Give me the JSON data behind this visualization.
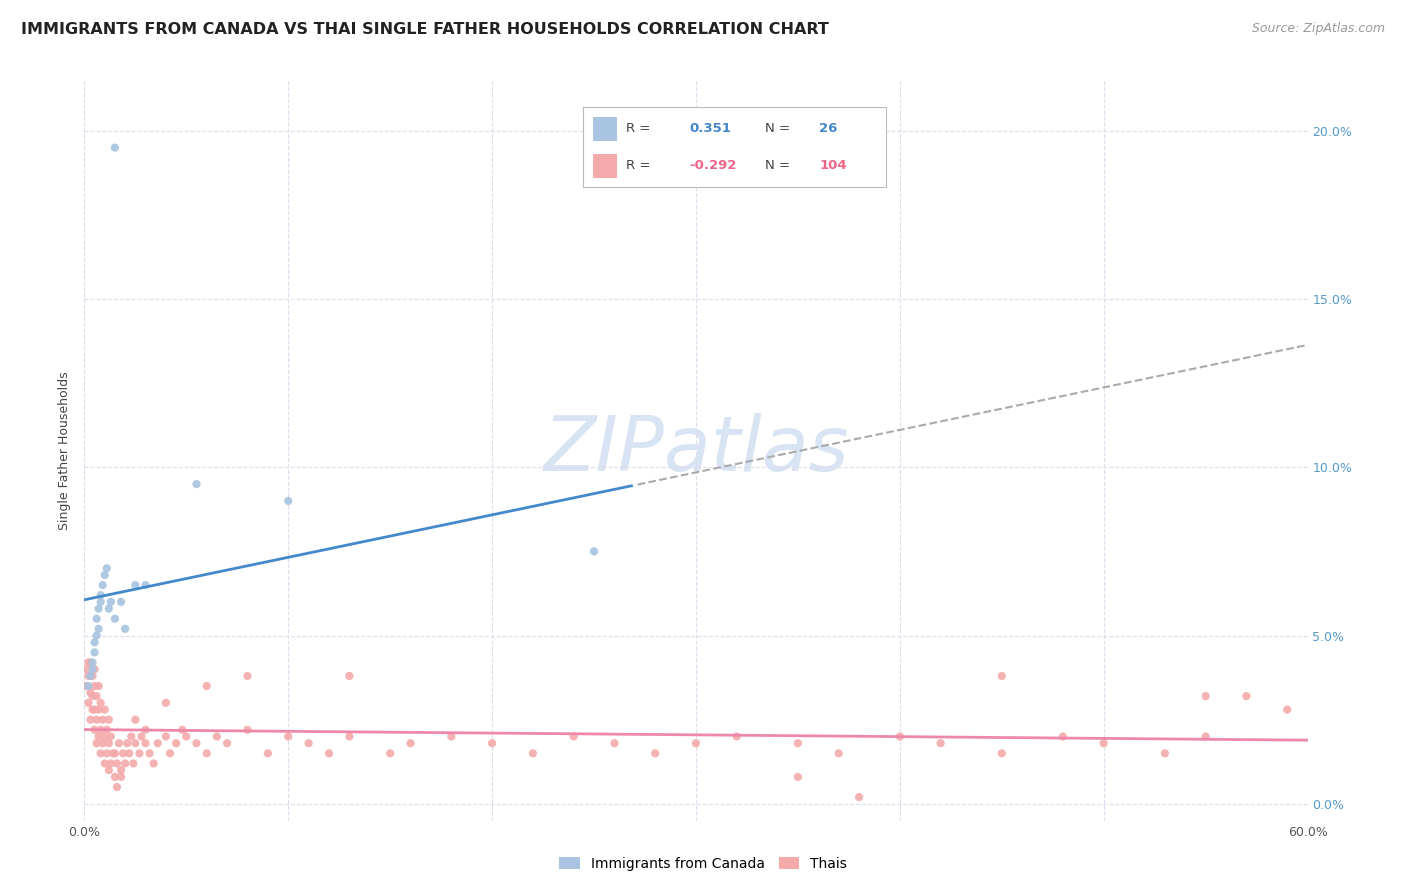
{
  "title": "IMMIGRANTS FROM CANADA VS THAI SINGLE FATHER HOUSEHOLDS CORRELATION CHART",
  "source": "Source: ZipAtlas.com",
  "ylabel": "Single Father Households",
  "xmin": 0.0,
  "xmax": 0.6,
  "ymin": -0.005,
  "ymax": 0.215,
  "yticks": [
    0.0,
    0.05,
    0.1,
    0.15,
    0.2
  ],
  "ytick_labels": [
    "0.0%",
    "5.0%",
    "10.0%",
    "15.0%",
    "20.0%"
  ],
  "xticks": [
    0.0,
    0.1,
    0.2,
    0.3,
    0.4,
    0.5,
    0.6
  ],
  "xtick_labels": [
    "0.0%",
    "",
    "",
    "",
    "",
    "",
    "60.0%"
  ],
  "canada_color": "#A8C4E0",
  "thai_color": "#F4AAAA",
  "canada_line_color": "#4488CC",
  "thai_line_color": "#EE88AA",
  "dashed_color": "#AAAAAA",
  "watermark": "ZIPatlas",
  "watermark_color": "#C8D8EE",
  "legend_label_canada": "Immigrants from Canada",
  "legend_label_thai": "Thais",
  "canada_R": "0.351",
  "canada_N": "26",
  "thai_R": "-0.292",
  "thai_N": "104",
  "canada_x": [
    0.002,
    0.003,
    0.004,
    0.004,
    0.005,
    0.005,
    0.006,
    0.006,
    0.007,
    0.007,
    0.008,
    0.008,
    0.009,
    0.01,
    0.011,
    0.012,
    0.013,
    0.015,
    0.018,
    0.02,
    0.025,
    0.03,
    0.055,
    0.1,
    0.25,
    0.015
  ],
  "canada_y": [
    0.035,
    0.038,
    0.04,
    0.042,
    0.045,
    0.048,
    0.05,
    0.055,
    0.052,
    0.058,
    0.06,
    0.062,
    0.065,
    0.068,
    0.07,
    0.058,
    0.06,
    0.055,
    0.06,
    0.052,
    0.065,
    0.065,
    0.095,
    0.09,
    0.075,
    0.195
  ],
  "thai_x": [
    0.001,
    0.001,
    0.002,
    0.002,
    0.002,
    0.003,
    0.003,
    0.003,
    0.003,
    0.004,
    0.004,
    0.004,
    0.005,
    0.005,
    0.005,
    0.005,
    0.006,
    0.006,
    0.006,
    0.007,
    0.007,
    0.007,
    0.008,
    0.008,
    0.008,
    0.009,
    0.009,
    0.01,
    0.01,
    0.01,
    0.011,
    0.011,
    0.012,
    0.012,
    0.012,
    0.013,
    0.013,
    0.014,
    0.015,
    0.015,
    0.016,
    0.017,
    0.018,
    0.019,
    0.02,
    0.021,
    0.022,
    0.023,
    0.024,
    0.025,
    0.027,
    0.028,
    0.03,
    0.032,
    0.034,
    0.036,
    0.04,
    0.042,
    0.045,
    0.048,
    0.05,
    0.055,
    0.06,
    0.065,
    0.07,
    0.08,
    0.09,
    0.1,
    0.11,
    0.12,
    0.13,
    0.15,
    0.16,
    0.18,
    0.2,
    0.22,
    0.24,
    0.26,
    0.28,
    0.3,
    0.32,
    0.35,
    0.37,
    0.4,
    0.42,
    0.45,
    0.48,
    0.5,
    0.53,
    0.55,
    0.025,
    0.03,
    0.018,
    0.016,
    0.04,
    0.06,
    0.08,
    0.13,
    0.45,
    0.55,
    0.35,
    0.38,
    0.57,
    0.59
  ],
  "thai_y": [
    0.035,
    0.04,
    0.03,
    0.038,
    0.042,
    0.025,
    0.033,
    0.038,
    0.042,
    0.028,
    0.032,
    0.038,
    0.022,
    0.028,
    0.035,
    0.04,
    0.018,
    0.025,
    0.032,
    0.02,
    0.028,
    0.035,
    0.015,
    0.022,
    0.03,
    0.018,
    0.025,
    0.012,
    0.02,
    0.028,
    0.015,
    0.022,
    0.01,
    0.018,
    0.025,
    0.012,
    0.02,
    0.015,
    0.008,
    0.015,
    0.012,
    0.018,
    0.01,
    0.015,
    0.012,
    0.018,
    0.015,
    0.02,
    0.012,
    0.018,
    0.015,
    0.02,
    0.018,
    0.015,
    0.012,
    0.018,
    0.02,
    0.015,
    0.018,
    0.022,
    0.02,
    0.018,
    0.015,
    0.02,
    0.018,
    0.022,
    0.015,
    0.02,
    0.018,
    0.015,
    0.02,
    0.015,
    0.018,
    0.02,
    0.018,
    0.015,
    0.02,
    0.018,
    0.015,
    0.018,
    0.02,
    0.018,
    0.015,
    0.02,
    0.018,
    0.015,
    0.02,
    0.018,
    0.015,
    0.02,
    0.025,
    0.022,
    0.008,
    0.005,
    0.03,
    0.035,
    0.038,
    0.038,
    0.038,
    0.032,
    0.008,
    0.002,
    0.032,
    0.028
  ],
  "background_color": "#FFFFFF",
  "grid_color": "#DDDDEE",
  "title_fontsize": 11.5,
  "axis_label_fontsize": 9,
  "tick_label_fontsize": 9,
  "legend_fontsize": 10,
  "source_fontsize": 9
}
